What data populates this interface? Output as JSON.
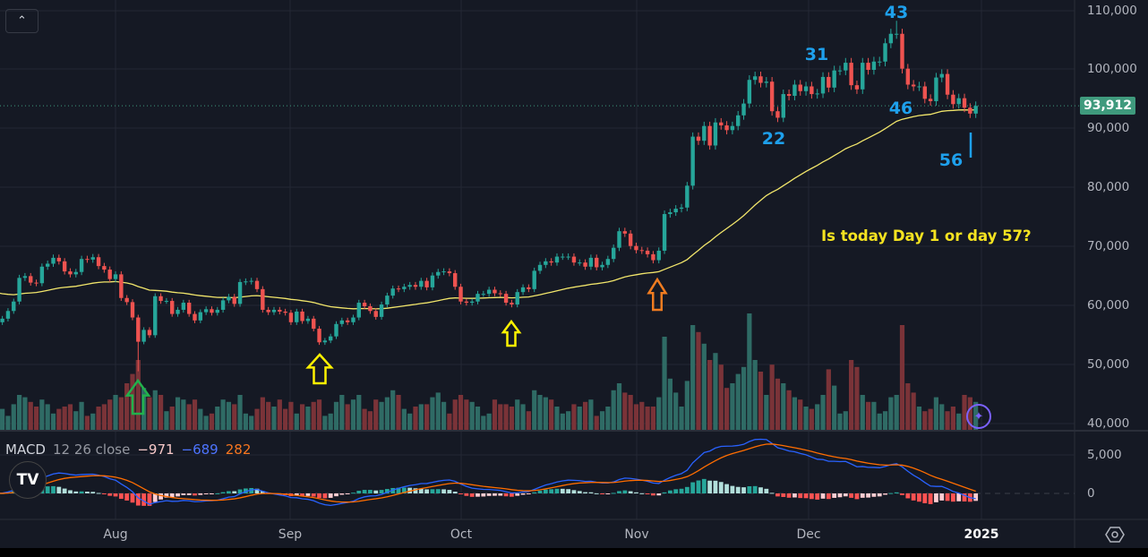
{
  "chart_data": {
    "type": "candlestick",
    "symbol_pane": {
      "start_date": "2024-07-11",
      "closes": [
        57.3,
        57.9,
        59.2,
        60.8,
        64.8,
        65.1,
        64.0,
        63.9,
        66.7,
        67.2,
        68.2,
        67.6,
        65.9,
        65.4,
        65.8,
        68.0,
        67.9,
        68.3,
        66.8,
        66.2,
        64.6,
        65.4,
        61.4,
        60.7,
        58.1,
        54.0,
        56.0,
        55.1,
        61.7,
        60.9,
        60.9,
        58.7,
        59.4,
        60.6,
        58.7,
        57.6,
        59.0,
        59.5,
        58.9,
        59.4,
        61.0,
        61.6,
        60.4,
        64.1,
        64.2,
        64.3,
        62.9,
        59.4,
        59.0,
        59.4,
        59.1,
        58.9,
        57.3,
        59.1,
        57.5,
        57.9,
        56.2,
        53.9,
        54.2,
        54.9,
        57.0,
        57.6,
        57.3,
        58.1,
        60.6,
        60.0,
        59.2,
        58.2,
        60.3,
        61.8,
        63.0,
        62.9,
        63.3,
        63.6,
        63.3,
        64.3,
        63.2,
        65.2,
        65.8,
        65.9,
        65.6,
        63.3,
        60.8,
        60.6,
        60.8,
        62.1,
        62.1,
        62.8,
        62.2,
        62.1,
        60.6,
        60.3,
        62.4,
        63.2,
        62.9,
        66.0,
        67.0,
        67.6,
        67.4,
        68.4,
        68.4,
        68.4,
        67.4,
        67.4,
        66.7,
        68.2,
        66.6,
        67.0,
        68.0,
        69.9,
        72.7,
        72.3,
        70.2,
        69.5,
        69.4,
        68.8,
        67.8,
        69.4,
        75.6,
        75.9,
        76.5,
        76.7,
        80.4,
        88.7,
        88.0,
        90.5,
        87.2,
        91.1,
        90.6,
        89.8,
        90.5,
        92.3,
        94.3,
        98.3,
        98.9,
        97.8,
        98.0,
        93.0,
        91.9,
        95.9,
        95.6,
        97.5,
        96.4,
        97.2,
        95.9,
        96.0,
        98.8,
        97.0,
        99.9,
        99.9,
        101.2,
        97.4,
        96.7,
        101.2,
        100.0,
        101.4,
        101.4,
        104.5,
        106.1,
        106.1,
        100.2,
        97.5,
        97.2,
        97.2,
        95.1,
        94.7,
        98.7,
        99.3,
        95.8,
        94.2,
        95.2,
        93.6,
        92.6,
        93.9
      ],
      "close_unit": "thousand USD",
      "volumes_relative": [
        20,
        18,
        12,
        22,
        30,
        28,
        24,
        20,
        26,
        22,
        14,
        18,
        20,
        22,
        16,
        24,
        12,
        14,
        20,
        22,
        26,
        30,
        28,
        40,
        48,
        60,
        36,
        28,
        34,
        30,
        16,
        20,
        28,
        26,
        22,
        26,
        18,
        12,
        14,
        20,
        26,
        24,
        22,
        30,
        14,
        12,
        18,
        28,
        24,
        20,
        26,
        18,
        24,
        14,
        22,
        20,
        24,
        26,
        12,
        14,
        24,
        30,
        22,
        26,
        30,
        18,
        16,
        26,
        24,
        28,
        34,
        30,
        18,
        14,
        20,
        22,
        22,
        28,
        32,
        24,
        14,
        26,
        30,
        26,
        24,
        20,
        12,
        14,
        26,
        22,
        22,
        20,
        26,
        22,
        16,
        34,
        30,
        28,
        26,
        20,
        14,
        16,
        22,
        20,
        24,
        26,
        12,
        16,
        20,
        34,
        40,
        32,
        30,
        22,
        24,
        20,
        20,
        28,
        80,
        44,
        32,
        20,
        42,
        90,
        84,
        74,
        60,
        66,
        56,
        36,
        40,
        48,
        54,
        100,
        60,
        50,
        30,
        56,
        44,
        40,
        34,
        28,
        26,
        20,
        18,
        22,
        30,
        52,
        38,
        14,
        16,
        60,
        54,
        30,
        24,
        24,
        14,
        16,
        28,
        30,
        90,
        40,
        32,
        20,
        16,
        18,
        28,
        22,
        16,
        20,
        14,
        30,
        28,
        24
      ],
      "extremes": {
        "2024-08-05_low": 49.0,
        "2024-12-17_high": 108.3
      },
      "last_price": "93,912",
      "ylim": [
        40000,
        110000
      ],
      "y_ticks": [
        "110,000",
        "100,000",
        "90,000",
        "80,000",
        "70,000",
        "60,000",
        "50,000",
        "40,000"
      ]
    },
    "macd_pane": {
      "legend": {
        "name": "MACD",
        "params": "12 26 close",
        "histogram": "−971",
        "macd": "−689",
        "signal": "282"
      },
      "y_ticks": [
        "5,000",
        "0"
      ]
    },
    "x_ticks": [
      "Aug",
      "Sep",
      "Oct",
      "Nov",
      "Dec",
      "2025"
    ],
    "annotations": {
      "question": "Is today Day 1 or day 57?",
      "day_counts": [
        "43",
        "31",
        "22",
        "46",
        "56"
      ]
    },
    "colors": {
      "up": "#26a69a",
      "down": "#ef5350",
      "ma": "#f2e66b",
      "macd": "#2962ff",
      "signal": "#ff6d00",
      "arrow_green": "#22b14c",
      "arrow_yellow": "#fff200",
      "arrow_orange": "#f07c20",
      "annotation_blue": "#1ea0ec"
    }
  }
}
